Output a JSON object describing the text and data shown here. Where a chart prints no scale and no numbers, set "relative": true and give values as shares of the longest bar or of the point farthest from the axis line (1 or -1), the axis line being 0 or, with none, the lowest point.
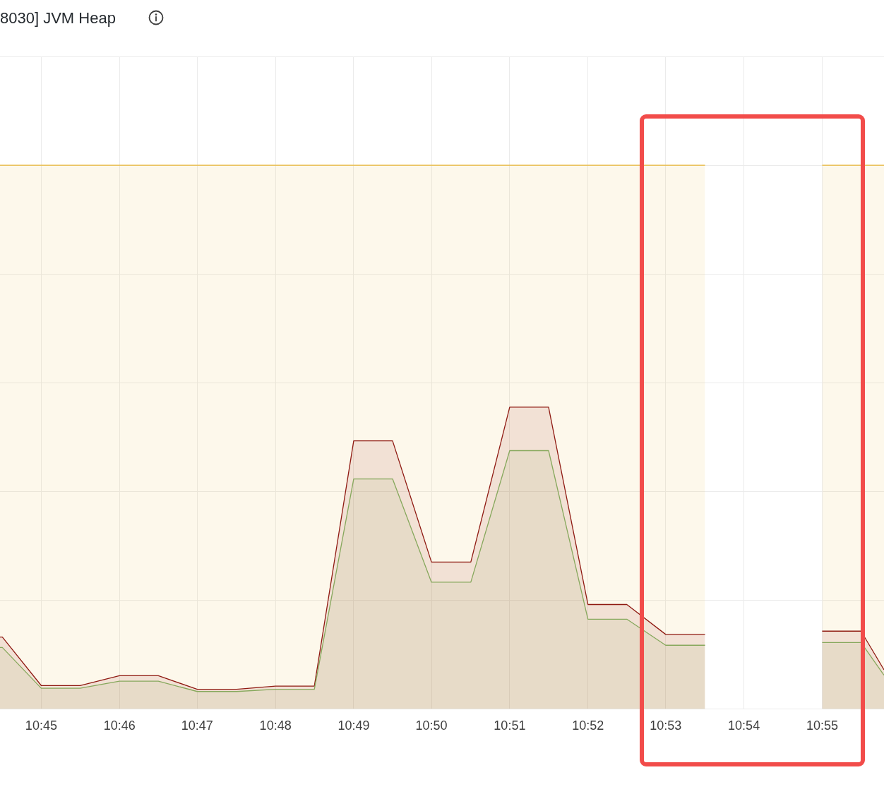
{
  "chart_data": {
    "type": "area",
    "title": "8030] JVM Heap",
    "relative": true,
    "x": [
      10.7412,
      10.7417,
      10.75,
      10.7583,
      10.7667,
      10.775,
      10.7833,
      10.7917,
      10.8,
      10.8083,
      10.8167,
      10.825,
      10.8333,
      10.8417,
      10.85,
      10.8583,
      10.8667,
      10.875,
      10.8833,
      10.8917,
      10.9,
      10.9083,
      10.9167,
      10.925,
      10.9299
    ],
    "series": [
      {
        "color": "#eab839",
        "values": [
          1,
          1,
          1,
          1,
          1,
          1,
          1,
          1,
          1,
          1,
          1,
          1,
          1,
          1,
          1,
          1,
          1,
          1,
          1,
          1,
          null,
          null,
          1,
          1,
          1
        ]
      },
      {
        "color": "#8f1a12",
        "values": [
          0.132,
          0.132,
          0.043,
          0.043,
          0.061,
          0.061,
          0.036,
          0.036,
          0.042,
          0.042,
          0.493,
          0.493,
          0.27,
          0.27,
          0.555,
          0.555,
          0.192,
          0.192,
          0.137,
          0.137,
          null,
          null,
          0.143,
          0.143,
          0.072
        ]
      },
      {
        "color": "#86a85c",
        "values": [
          0.113,
          0.113,
          0.038,
          0.038,
          0.051,
          0.051,
          0.032,
          0.032,
          0.036,
          0.036,
          0.423,
          0.423,
          0.233,
          0.233,
          0.475,
          0.475,
          0.165,
          0.165,
          0.117,
          0.117,
          null,
          null,
          0.122,
          0.122,
          0.062
        ]
      }
    ],
    "xlim": [
      10.7412,
      10.9299
    ],
    "xticks": [
      {
        "value": 10.75,
        "label": "10:45"
      },
      {
        "value": 10.7667,
        "label": "10:46"
      },
      {
        "value": 10.7833,
        "label": "10:47"
      },
      {
        "value": 10.8,
        "label": "10:48"
      },
      {
        "value": 10.8167,
        "label": "10:49"
      },
      {
        "value": 10.8333,
        "label": "10:50"
      },
      {
        "value": 10.85,
        "label": "10:51"
      },
      {
        "value": 10.8667,
        "label": "10:52"
      },
      {
        "value": 10.8833,
        "label": "10:53"
      },
      {
        "value": 10.9,
        "label": "10:54"
      },
      {
        "value": 10.9167,
        "label": "10:55"
      }
    ],
    "grid": true
  }
}
